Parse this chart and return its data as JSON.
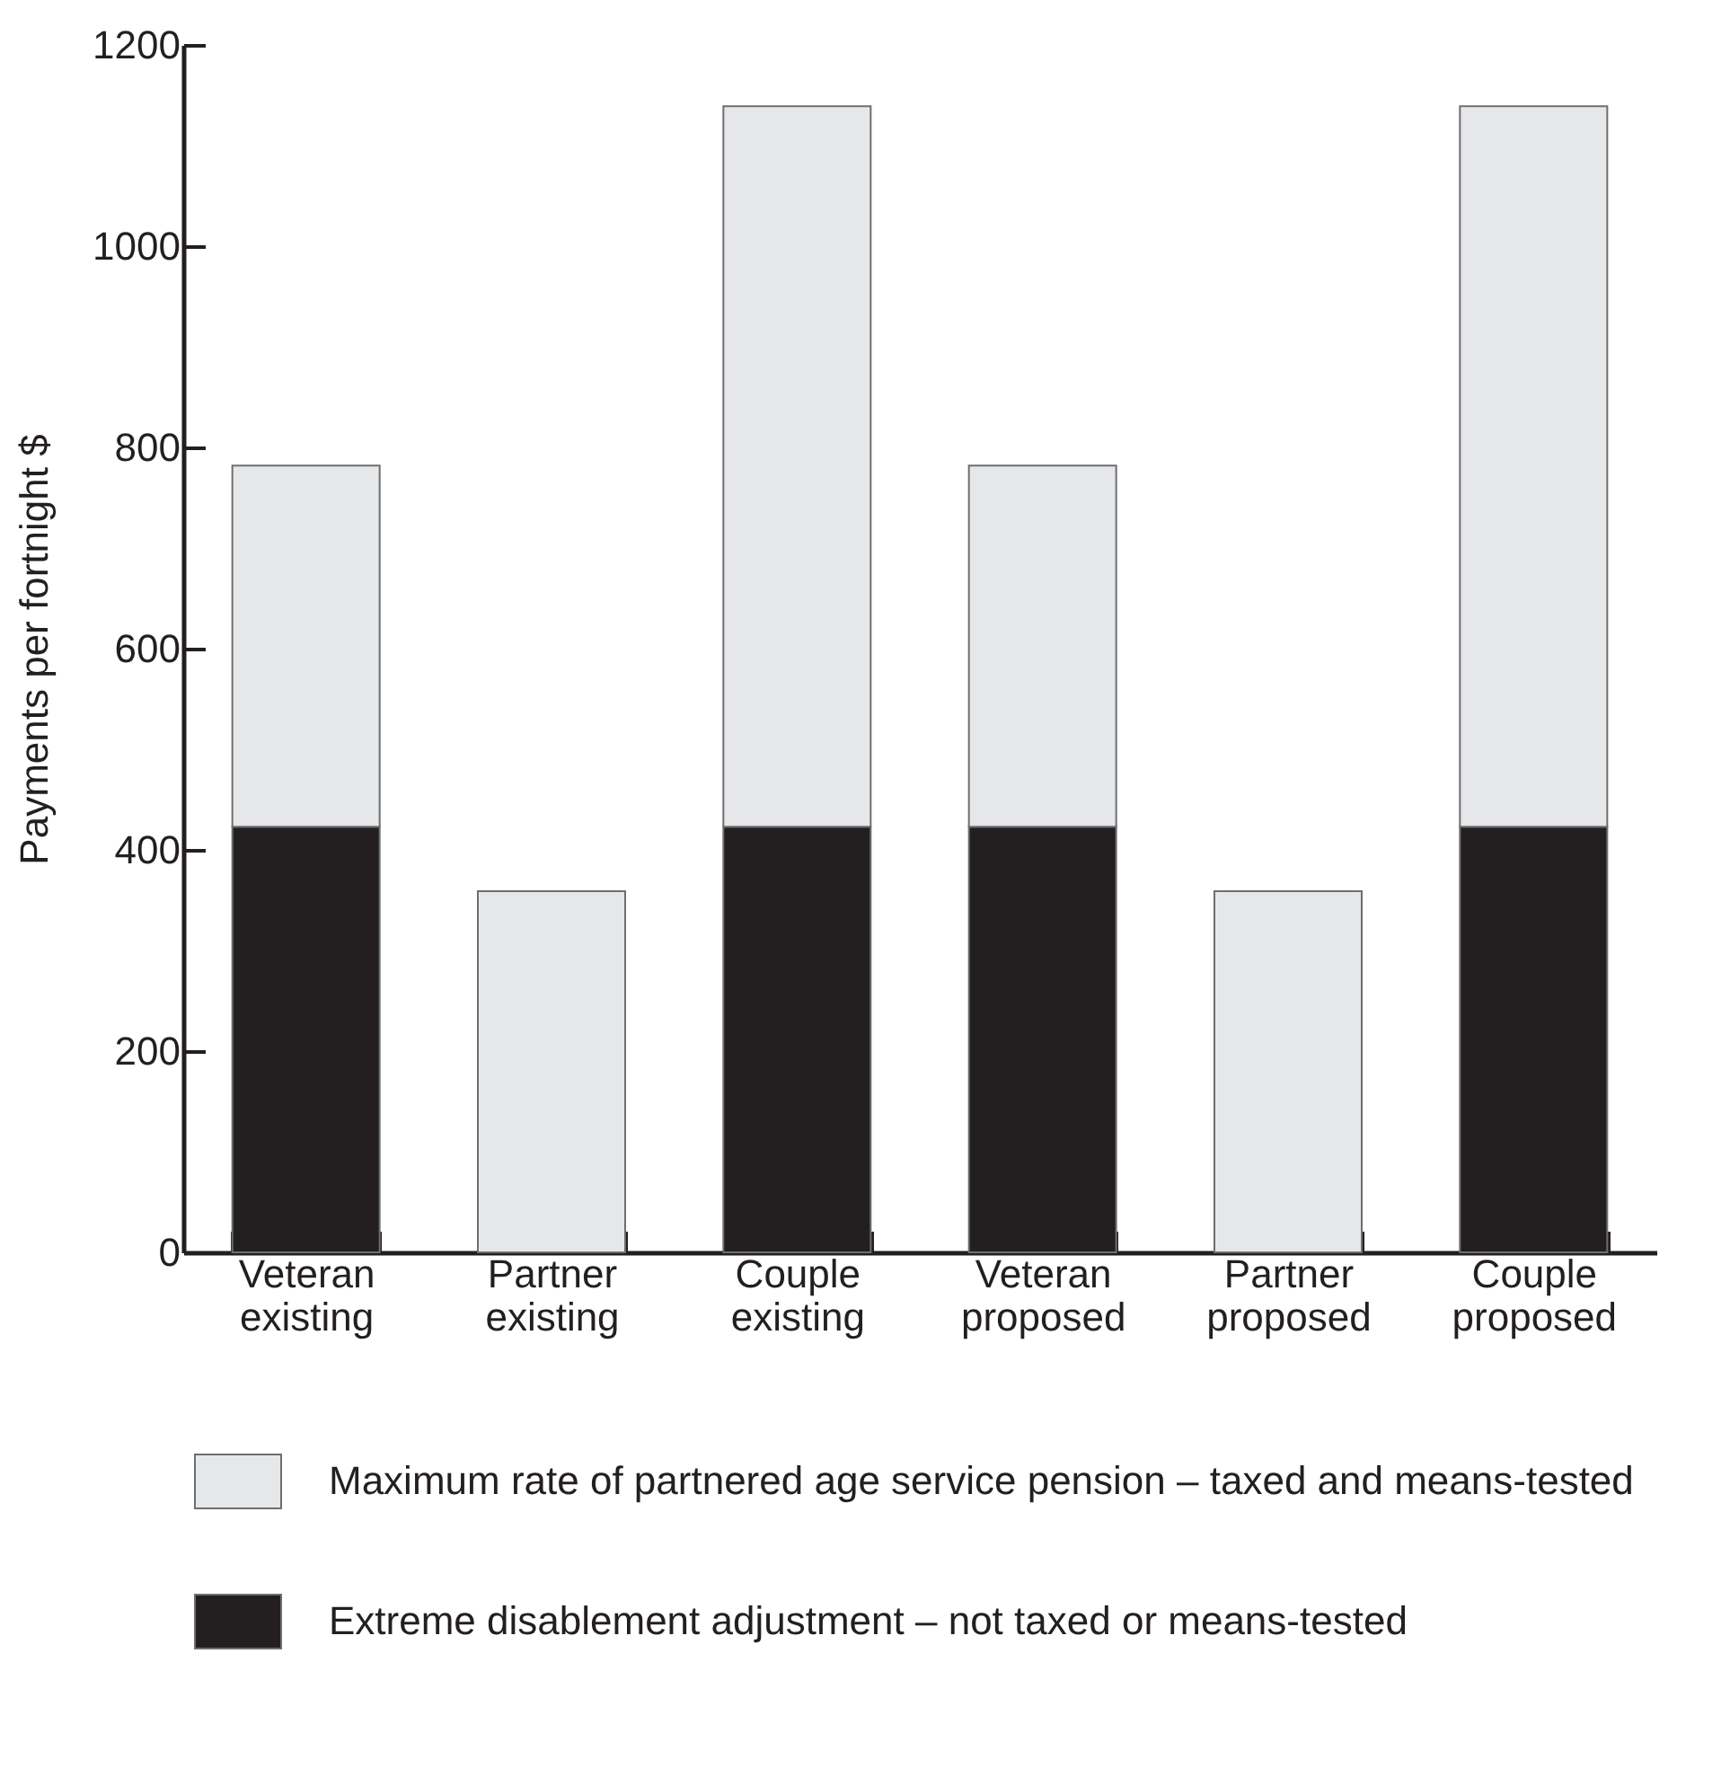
{
  "chart_data": {
    "type": "bar",
    "stacked": true,
    "ylabel": "Payments per fortnight $",
    "categories": [
      "Veteran existing",
      "Partner existing",
      "Couple existing",
      "Veteran proposed",
      "Partner proposed",
      "Couple proposed"
    ],
    "series": [
      {
        "name": "Extreme disablement adjustment – not taxed or means-tested",
        "color": "#231f20",
        "values": [
          423,
          null,
          423,
          423,
          null,
          423
        ]
      },
      {
        "name": "Maximum rate of partnered age service pension – taxed and means-tested",
        "color": "#e6e7e8",
        "values": [
          359,
          359,
          716,
          359,
          359,
          716
        ]
      }
    ],
    "ylim": [
      0,
      1200
    ],
    "yticks": [
      0,
      200,
      400,
      600,
      800,
      1000,
      1200
    ],
    "grid": false,
    "legend": "bottom"
  }
}
